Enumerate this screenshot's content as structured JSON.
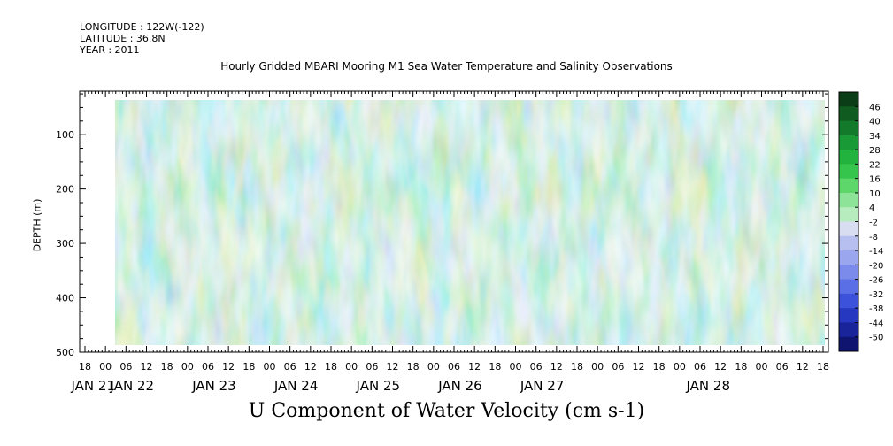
{
  "header": {
    "longitude": "LONGITUDE : 122W(-122)",
    "latitude": "LATITUDE : 36.8N",
    "year": "YEAR : 2011"
  },
  "chart_data": {
    "type": "heatmap",
    "title": "Hourly Gridded MBARI Mooring M1 Sea Water Temperature and Salinity Observations",
    "xlabel": "U Component of Water Velocity (cm s-1)",
    "ylabel": "DEPTH (m)",
    "x_hour_ticks": [
      "18",
      "00",
      "06",
      "12",
      "18",
      "00",
      "06",
      "12",
      "18",
      "00",
      "06",
      "12",
      "18",
      "00",
      "06",
      "12",
      "18",
      "00",
      "06",
      "12",
      "18",
      "00",
      "06",
      "12",
      "18",
      "00",
      "06",
      "12",
      "18",
      "00",
      "06",
      "12",
      "18",
      "00",
      "06",
      "12",
      "18"
    ],
    "x_day_labels": [
      "JAN 21",
      "JAN 22",
      "JAN 23",
      "JAN 24",
      "JAN 25",
      "JAN 26",
      "JAN 27",
      "JAN 28"
    ],
    "y_ticks": [
      100,
      200,
      300,
      400,
      500
    ],
    "ylim": [
      500,
      20
    ],
    "colorbar": {
      "labels": [
        46,
        40,
        34,
        28,
        22,
        16,
        10,
        4,
        -2,
        -8,
        -14,
        -20,
        -26,
        -32,
        -38,
        -44,
        -50
      ],
      "colors": [
        "#0b3d16",
        "#0f5b20",
        "#137a2b",
        "#1a9a36",
        "#22b33e",
        "#35c54c",
        "#5dd66a",
        "#8de398",
        "#b7ecbf",
        "#d8ddf2",
        "#b6bff0",
        "#9aa6ee",
        "#7b8bec",
        "#5a6ee6",
        "#3c52da",
        "#2638c0",
        "#1a249a",
        "#0f1470"
      ]
    },
    "grid": false
  }
}
